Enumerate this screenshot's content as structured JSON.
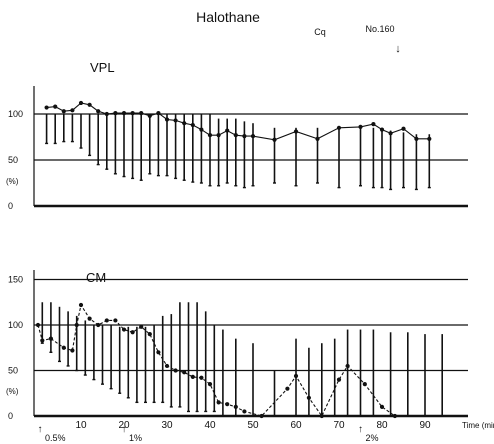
{
  "header": {
    "title": "Halothane",
    "animal_code": "Cq",
    "case_number": "No.160",
    "marker_glyph": "↓"
  },
  "chart_data": [
    {
      "type": "line",
      "panel_label": "VPL",
      "unit_label": "(%)",
      "xlim": [
        0,
        100
      ],
      "ylim": [
        0,
        125
      ],
      "yticks": [
        0,
        50,
        100
      ],
      "reference_lines": [
        50,
        100
      ],
      "series": [
        {
          "style": "solid line with filled dots",
          "points": [
            [
              2,
              107
            ],
            [
              4,
              108
            ],
            [
              6,
              103
            ],
            [
              8,
              104
            ],
            [
              10,
              112
            ],
            [
              12,
              110
            ],
            [
              14,
              103
            ],
            [
              16,
              100
            ],
            [
              18,
              101
            ],
            [
              20,
              101
            ],
            [
              22,
              101
            ],
            [
              24,
              101
            ],
            [
              26,
              98
            ],
            [
              28,
              101
            ],
            [
              30,
              94
            ],
            [
              32,
              93
            ],
            [
              34,
              90
            ],
            [
              36,
              88
            ],
            [
              38,
              83
            ],
            [
              40,
              77
            ],
            [
              42,
              77
            ],
            [
              44,
              82
            ],
            [
              46,
              77
            ],
            [
              48,
              76
            ],
            [
              50,
              76
            ],
            [
              55,
              72
            ],
            [
              60,
              81
            ],
            [
              65,
              73
            ],
            [
              70,
              85
            ],
            [
              75,
              86
            ],
            [
              78,
              89
            ],
            [
              80,
              83
            ],
            [
              82,
              79
            ],
            [
              85,
              84
            ],
            [
              88,
              73
            ],
            [
              91,
              73
            ]
          ]
        }
      ],
      "ranges": [
        [
          2,
          68,
          100
        ],
        [
          4,
          68,
          100
        ],
        [
          6,
          70,
          100
        ],
        [
          8,
          70,
          100
        ],
        [
          10,
          63,
          100
        ],
        [
          12,
          55,
          100
        ],
        [
          14,
          45,
          100
        ],
        [
          16,
          40,
          100
        ],
        [
          18,
          35,
          100
        ],
        [
          20,
          32,
          100
        ],
        [
          22,
          30,
          100
        ],
        [
          24,
          28,
          100
        ],
        [
          26,
          35,
          100
        ],
        [
          28,
          33,
          100
        ],
        [
          30,
          33,
          100
        ],
        [
          32,
          30,
          100
        ],
        [
          34,
          28,
          100
        ],
        [
          36,
          26,
          100
        ],
        [
          38,
          25,
          100
        ],
        [
          40,
          22,
          100
        ],
        [
          42,
          22,
          95
        ],
        [
          44,
          25,
          95
        ],
        [
          46,
          22,
          95
        ],
        [
          48,
          20,
          92
        ],
        [
          50,
          22,
          90
        ],
        [
          55,
          25,
          85
        ],
        [
          60,
          22,
          85
        ],
        [
          65,
          25,
          85
        ],
        [
          70,
          20,
          85
        ],
        [
          75,
          22,
          85
        ],
        [
          78,
          20,
          85
        ],
        [
          80,
          20,
          82
        ],
        [
          82,
          18,
          82
        ],
        [
          85,
          20,
          80
        ],
        [
          88,
          18,
          78
        ],
        [
          91,
          20,
          78
        ]
      ]
    },
    {
      "type": "line",
      "panel_label": "CM",
      "unit_label": "(%)",
      "xlabel": "Time (min.)",
      "xlim": [
        0,
        100
      ],
      "ylim": [
        0,
        150
      ],
      "yticks": [
        0,
        50,
        100,
        150
      ],
      "xticks": [
        10,
        20,
        30,
        40,
        50,
        60,
        70,
        80,
        90
      ],
      "reference_lines": [
        50,
        100,
        150
      ],
      "series": [
        {
          "style": "dashed line with filled dots",
          "points": [
            [
              0,
              100
            ],
            [
              1,
              83
            ],
            [
              3,
              85
            ],
            [
              6,
              75
            ],
            [
              8,
              72
            ],
            [
              9,
              100
            ],
            [
              10,
              122
            ],
            [
              12,
              107
            ],
            [
              14,
              100
            ],
            [
              16,
              105
            ],
            [
              18,
              105
            ],
            [
              20,
              95
            ],
            [
              22,
              92
            ],
            [
              24,
              98
            ],
            [
              26,
              90
            ],
            [
              28,
              70
            ],
            [
              30,
              55
            ],
            [
              32,
              50
            ],
            [
              34,
              48
            ],
            [
              36,
              43
            ],
            [
              38,
              42
            ],
            [
              40,
              35
            ],
            [
              42,
              15
            ],
            [
              44,
              13
            ],
            [
              46,
              10
            ],
            [
              48,
              5
            ],
            [
              52,
              0
            ],
            [
              58,
              30
            ],
            [
              60,
              44
            ],
            [
              63,
              20
            ],
            [
              66,
              0
            ],
            [
              70,
              40
            ],
            [
              72,
              55
            ],
            [
              76,
              35
            ],
            [
              80,
              10
            ],
            [
              83,
              0
            ]
          ]
        }
      ],
      "ranges": [
        [
          1,
          80,
          125
        ],
        [
          3,
          70,
          125
        ],
        [
          5,
          60,
          120
        ],
        [
          7,
          55,
          115
        ],
        [
          9,
          50,
          110
        ],
        [
          11,
          45,
          105
        ],
        [
          13,
          40,
          100
        ],
        [
          15,
          35,
          100
        ],
        [
          17,
          30,
          100
        ],
        [
          19,
          25,
          98
        ],
        [
          21,
          20,
          98
        ],
        [
          23,
          15,
          98
        ],
        [
          25,
          15,
          98
        ],
        [
          27,
          15,
          100
        ],
        [
          29,
          15,
          110
        ],
        [
          31,
          10,
          112
        ],
        [
          33,
          10,
          125
        ],
        [
          35,
          5,
          125
        ],
        [
          37,
          5,
          125
        ],
        [
          39,
          5,
          115
        ],
        [
          41,
          5,
          100
        ],
        [
          43,
          0,
          95
        ],
        [
          46,
          0,
          85
        ],
        [
          50,
          0,
          80
        ],
        [
          55,
          0,
          50
        ],
        [
          60,
          0,
          85
        ],
        [
          63,
          0,
          75
        ],
        [
          66,
          0,
          80
        ],
        [
          69,
          0,
          85
        ],
        [
          72,
          0,
          95
        ],
        [
          75,
          0,
          95
        ],
        [
          78,
          0,
          95
        ],
        [
          82,
          0,
          92
        ],
        [
          86,
          0,
          92
        ],
        [
          90,
          0,
          90
        ],
        [
          94,
          0,
          90
        ]
      ]
    }
  ],
  "concentration_markers": [
    {
      "time": 0,
      "label": "0.5%"
    },
    {
      "time": 20,
      "label": "1%"
    },
    {
      "time": 75,
      "label": "2%"
    }
  ]
}
